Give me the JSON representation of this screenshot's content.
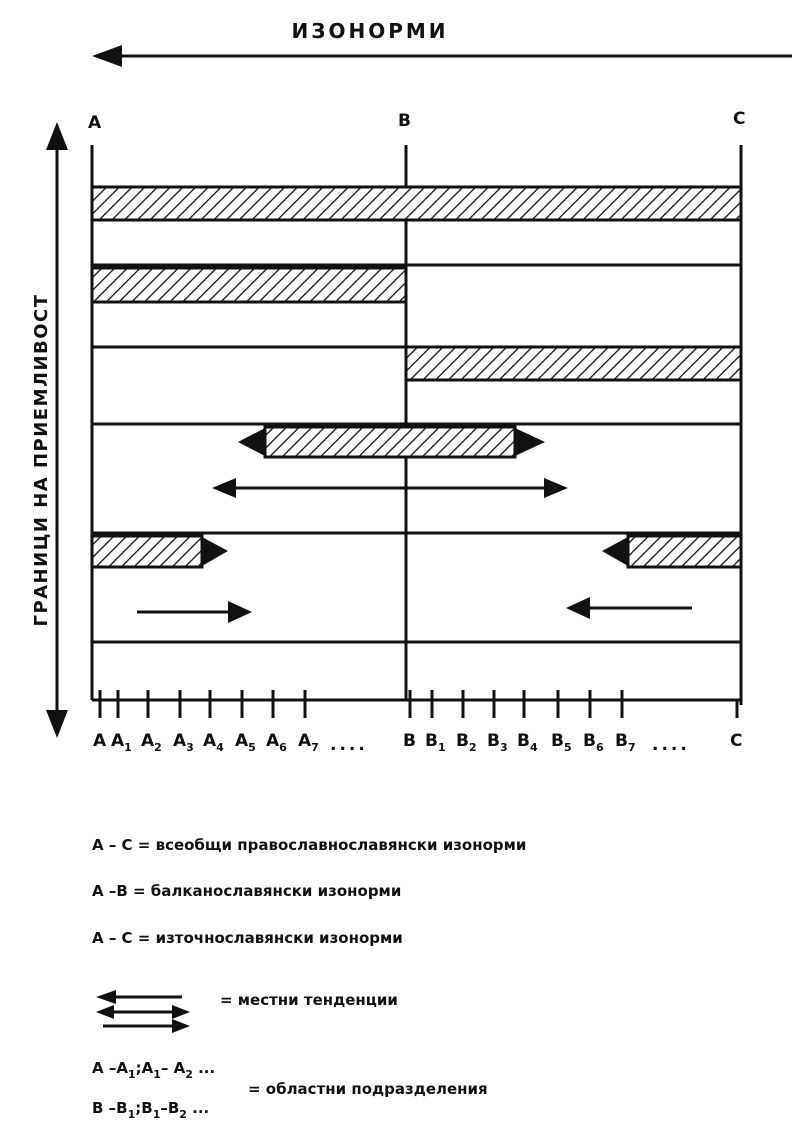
{
  "title": "ИЗОНОРМИ",
  "vertical_label": "ГРАНИЦИ НА ПРИЕМЛИВОСТ",
  "column_labels": [
    "A",
    "B",
    "C"
  ],
  "ticks": [
    {
      "base": "A",
      "sub": ""
    },
    {
      "base": "A",
      "sub": "1"
    },
    {
      "base": "A",
      "sub": "2"
    },
    {
      "base": "A",
      "sub": "3"
    },
    {
      "base": "A",
      "sub": "4"
    },
    {
      "base": "A",
      "sub": "5"
    },
    {
      "base": "A",
      "sub": "6"
    },
    {
      "base": "A",
      "sub": "7"
    },
    {
      "base": "B",
      "sub": ""
    },
    {
      "base": "B",
      "sub": "1"
    },
    {
      "base": "B",
      "sub": "2"
    },
    {
      "base": "B",
      "sub": "3"
    },
    {
      "base": "B",
      "sub": "4"
    },
    {
      "base": "B",
      "sub": "5"
    },
    {
      "base": "B",
      "sub": "6"
    },
    {
      "base": "B",
      "sub": "7"
    },
    {
      "base": "C",
      "sub": ""
    }
  ],
  "ellipsis": "....",
  "legend": {
    "line1": "A – C = всеобщи православнославянски изонорми",
    "line2": "A –B = балканославянски изонорми",
    "line3": "A – C = източнославянски изонорми",
    "arrows_label": "=  местни тенденции",
    "sub_a": {
      "p1": "A –A",
      "s1": "1",
      "p2": ";A",
      "s2": "1",
      "p3": "– A",
      "s3": "2",
      "p4": " ..."
    },
    "sub_b": {
      "p1": "B –B",
      "s1": "1",
      "p2": ";B",
      "s2": "1",
      "p3": "–B",
      "s3": "2",
      "p4": "  ..."
    },
    "subdivisions_label": "= областни подразделения"
  },
  "colors": {
    "ink": "#111111",
    "background": "#ffffff"
  }
}
